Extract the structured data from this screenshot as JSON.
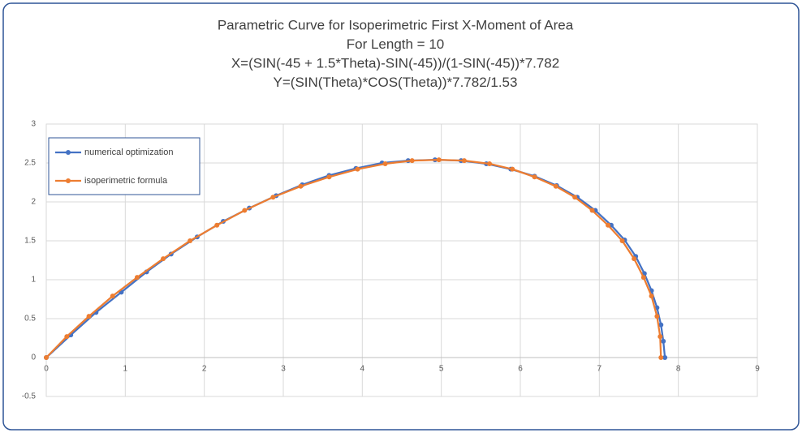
{
  "chart_data": {
    "type": "scatter-line",
    "title": [
      "Parametric Curve for Isoperimetric First X-Moment of Area",
      "For Length = 10",
      "X=(SIN(-45 + 1.5*Theta)-SIN(-45))/(1-SIN(-45))*7.782",
      "Y=(SIN(Theta)*COS(Theta))*7.782/1.53"
    ],
    "xlim": [
      0,
      9
    ],
    "ylim": [
      -0.5,
      3
    ],
    "xticks": [
      0,
      1,
      2,
      3,
      4,
      5,
      6,
      7,
      8,
      9
    ],
    "yticks": [
      -0.5,
      0,
      0.5,
      1,
      1.5,
      2,
      2.5,
      3
    ],
    "grid": true,
    "legend": "top-left",
    "series": [
      {
        "name": "numerical optimization",
        "color": "#4472c4",
        "x": [
          0,
          0.31,
          0.63,
          0.95,
          1.27,
          1.58,
          1.91,
          2.24,
          2.57,
          2.91,
          3.24,
          3.58,
          3.92,
          4.25,
          4.58,
          4.92,
          5.25,
          5.57,
          5.88,
          6.18,
          6.46,
          6.72,
          6.95,
          7.15,
          7.32,
          7.46,
          7.57,
          7.66,
          7.73,
          7.78,
          7.81,
          7.83
        ],
        "values": [
          0,
          0.29,
          0.58,
          0.84,
          1.1,
          1.33,
          1.55,
          1.75,
          1.92,
          2.08,
          2.22,
          2.34,
          2.43,
          2.5,
          2.53,
          2.54,
          2.53,
          2.49,
          2.42,
          2.33,
          2.21,
          2.06,
          1.89,
          1.7,
          1.51,
          1.3,
          1.08,
          0.86,
          0.64,
          0.42,
          0.21,
          0
        ]
      },
      {
        "name": "isoperimetric formula",
        "color": "#ed7d31",
        "x": [
          0,
          0.26,
          0.54,
          0.84,
          1.15,
          1.48,
          1.82,
          2.16,
          2.51,
          2.87,
          3.22,
          3.58,
          3.94,
          4.29,
          4.63,
          4.97,
          5.29,
          5.61,
          5.9,
          6.18,
          6.45,
          6.69,
          6.91,
          7.11,
          7.29,
          7.44,
          7.56,
          7.66,
          7.73,
          7.77,
          7.78
        ],
        "values": [
          0,
          0.27,
          0.53,
          0.79,
          1.03,
          1.27,
          1.5,
          1.7,
          1.89,
          2.06,
          2.2,
          2.32,
          2.42,
          2.49,
          2.53,
          2.54,
          2.53,
          2.49,
          2.42,
          2.32,
          2.2,
          2.06,
          1.89,
          1.7,
          1.5,
          1.27,
          1.03,
          0.79,
          0.53,
          0.27,
          0
        ]
      }
    ]
  }
}
